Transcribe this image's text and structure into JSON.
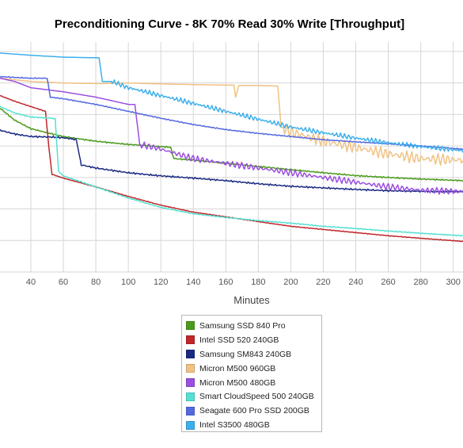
{
  "chart_data": {
    "type": "line",
    "title": "Preconditioning Curve - 8K 70% Read 30% Write [Throughput]",
    "xlabel": "Minutes",
    "ylabel": "",
    "xlim": [
      21,
      306
    ],
    "ylim": [
      0,
      7.3
    ],
    "x_ticks": [
      "40",
      "60",
      "80",
      "100",
      "120",
      "140",
      "160",
      "180",
      "200",
      "220",
      "240",
      "260",
      "280",
      "300"
    ],
    "grid": true,
    "legend_position": "bottom-center",
    "series": [
      {
        "name": "Samsung SSD 840 Pro",
        "color": "#4a9a1c",
        "points": [
          [
            21,
            5.2
          ],
          [
            30,
            4.82
          ],
          [
            40,
            4.55
          ],
          [
            50,
            4.42
          ],
          [
            60,
            4.3
          ],
          [
            80,
            4.15
          ],
          [
            100,
            4.05
          ],
          [
            120,
            3.98
          ],
          [
            126,
            3.96
          ],
          [
            128,
            3.6
          ],
          [
            140,
            3.55
          ],
          [
            160,
            3.45
          ],
          [
            180,
            3.35
          ],
          [
            200,
            3.25
          ],
          [
            220,
            3.15
          ],
          [
            240,
            3.06
          ],
          [
            260,
            3.0
          ],
          [
            280,
            2.95
          ],
          [
            306,
            2.9
          ]
        ],
        "noise": 0.02,
        "period": 1.5
      },
      {
        "name": "Intel SSD 520 240GB",
        "color": "#c0262a",
        "points": [
          [
            21,
            5.6
          ],
          [
            30,
            5.42
          ],
          [
            40,
            5.25
          ],
          [
            49,
            5.1
          ],
          [
            51,
            4.0
          ],
          [
            53,
            3.1
          ],
          [
            60,
            2.98
          ],
          [
            80,
            2.7
          ],
          [
            100,
            2.4
          ],
          [
            120,
            2.12
          ],
          [
            140,
            1.9
          ],
          [
            160,
            1.75
          ],
          [
            180,
            1.6
          ],
          [
            200,
            1.45
          ],
          [
            220,
            1.35
          ],
          [
            240,
            1.25
          ],
          [
            260,
            1.15
          ],
          [
            280,
            1.07
          ],
          [
            306,
            0.97
          ]
        ],
        "noise": 0.01,
        "period": 2
      },
      {
        "name": "Samsung SM843 240GB",
        "color": "#1a2a82",
        "points": [
          [
            21,
            4.5
          ],
          [
            30,
            4.38
          ],
          [
            40,
            4.3
          ],
          [
            55,
            4.28
          ],
          [
            62,
            4.25
          ],
          [
            68,
            4.2
          ],
          [
            71,
            3.4
          ],
          [
            80,
            3.3
          ],
          [
            100,
            3.15
          ],
          [
            120,
            3.05
          ],
          [
            140,
            2.98
          ],
          [
            160,
            2.9
          ],
          [
            180,
            2.8
          ],
          [
            200,
            2.72
          ],
          [
            220,
            2.67
          ],
          [
            240,
            2.62
          ],
          [
            260,
            2.58
          ],
          [
            280,
            2.56
          ],
          [
            306,
            2.55
          ]
        ],
        "noise": 0.025,
        "period": 1.5
      },
      {
        "name": "Micron M500 960GB",
        "color": "#f0c283",
        "points": [
          [
            21,
            6.15
          ],
          [
            40,
            6.05
          ],
          [
            60,
            6.0
          ],
          [
            80,
            5.98
          ],
          [
            100,
            6.0
          ],
          [
            120,
            5.97
          ],
          [
            140,
            5.95
          ],
          [
            160,
            5.93
          ],
          [
            165,
            5.93
          ],
          [
            166,
            5.55
          ],
          [
            168,
            5.92
          ],
          [
            180,
            5.92
          ],
          [
            192,
            5.9
          ],
          [
            194,
            4.6
          ],
          [
            200,
            4.45
          ],
          [
            210,
            4.3
          ],
          [
            220,
            4.15
          ],
          [
            240,
            3.95
          ],
          [
            260,
            3.75
          ],
          [
            280,
            3.6
          ],
          [
            306,
            3.55
          ]
        ],
        "noise": 0.16,
        "noiseFrom": 195,
        "period": 3.2
      },
      {
        "name": "Micron M500 480GB",
        "color": "#9b4ee0",
        "points": [
          [
            21,
            6.15
          ],
          [
            30,
            6.05
          ],
          [
            40,
            5.85
          ],
          [
            60,
            5.72
          ],
          [
            80,
            5.55
          ],
          [
            100,
            5.32
          ],
          [
            104,
            5.32
          ],
          [
            107,
            4.05
          ],
          [
            120,
            3.9
          ],
          [
            140,
            3.6
          ],
          [
            160,
            3.45
          ],
          [
            180,
            3.3
          ],
          [
            200,
            3.15
          ],
          [
            220,
            3.0
          ],
          [
            240,
            2.85
          ],
          [
            260,
            2.7
          ],
          [
            280,
            2.6
          ],
          [
            306,
            2.55
          ]
        ],
        "noise": 0.09,
        "noiseFrom": 108,
        "period": 3
      },
      {
        "name": "Smart CloudSpeed 500 240GB",
        "color": "#55e0d2",
        "points": [
          [
            21,
            5.25
          ],
          [
            30,
            5.05
          ],
          [
            40,
            4.92
          ],
          [
            53,
            4.88
          ],
          [
            55,
            4.85
          ],
          [
            57,
            3.2
          ],
          [
            60,
            3.05
          ],
          [
            80,
            2.7
          ],
          [
            100,
            2.35
          ],
          [
            120,
            2.05
          ],
          [
            140,
            1.85
          ],
          [
            160,
            1.73
          ],
          [
            180,
            1.63
          ],
          [
            200,
            1.55
          ],
          [
            220,
            1.45
          ],
          [
            240,
            1.38
          ],
          [
            260,
            1.3
          ],
          [
            280,
            1.23
          ],
          [
            306,
            1.15
          ]
        ],
        "noise": 0.015,
        "period": 2
      },
      {
        "name": "Seagate 600 Pro SSD 200GB",
        "color": "#5468e0",
        "points": [
          [
            21,
            6.2
          ],
          [
            40,
            6.15
          ],
          [
            50,
            6.15
          ],
          [
            52,
            5.55
          ],
          [
            60,
            5.5
          ],
          [
            80,
            5.32
          ],
          [
            100,
            5.1
          ],
          [
            120,
            4.88
          ],
          [
            140,
            4.68
          ],
          [
            160,
            4.52
          ],
          [
            180,
            4.4
          ],
          [
            200,
            4.3
          ],
          [
            220,
            4.2
          ],
          [
            240,
            4.13
          ],
          [
            260,
            4.07
          ],
          [
            280,
            4.0
          ],
          [
            306,
            3.9
          ]
        ],
        "noise": 0.015,
        "period": 2
      },
      {
        "name": "Intel S3500 480GB",
        "color": "#3cb0ec",
        "points": [
          [
            21,
            6.95
          ],
          [
            40,
            6.88
          ],
          [
            60,
            6.82
          ],
          [
            80,
            6.8
          ],
          [
            82,
            6.8
          ],
          [
            84,
            6.05
          ],
          [
            90,
            6.05
          ],
          [
            100,
            5.85
          ],
          [
            120,
            5.6
          ],
          [
            140,
            5.35
          ],
          [
            160,
            5.1
          ],
          [
            180,
            4.85
          ],
          [
            200,
            4.6
          ],
          [
            220,
            4.42
          ],
          [
            240,
            4.25
          ],
          [
            260,
            4.1
          ],
          [
            280,
            3.98
          ],
          [
            306,
            3.85
          ]
        ],
        "noise": 0.07,
        "noiseFrom": 90,
        "period": 2.4
      }
    ]
  }
}
